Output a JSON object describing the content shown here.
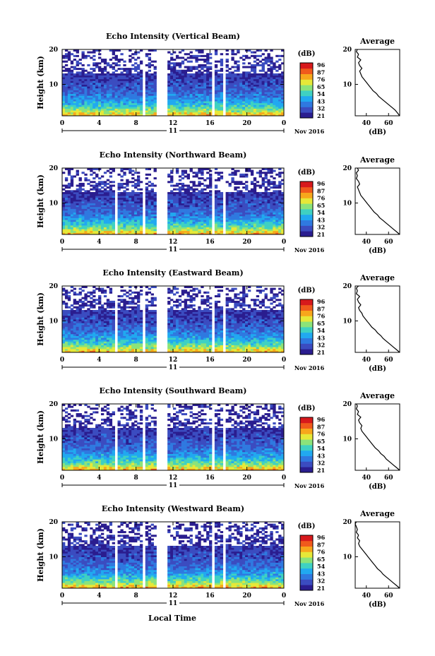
{
  "figure": {
    "xlabel": "Local Time"
  },
  "chart_data": [
    {
      "type": "heatmap",
      "title": "Echo Intensity (Vertical Beam)",
      "ylabel": "Height (km)",
      "x_ticks": [
        "0",
        "4",
        "8",
        "12",
        "16",
        "20",
        "0"
      ],
      "y_ticks": [
        "20",
        "10"
      ],
      "date_label": "11",
      "date_right": "Nov 2016",
      "ylim": [
        1,
        20
      ],
      "xlim": [
        0,
        24
      ],
      "gaps_hours": [
        [
          8.8,
          9.1
        ],
        [
          10.3,
          11.5
        ],
        [
          16.2,
          16.6
        ],
        [
          17.3,
          17.8
        ]
      ],
      "colorbar": {
        "unit": "(dB)",
        "ticks": [
          "96",
          "87",
          "76",
          "65",
          "54",
          "43",
          "32",
          "21"
        ],
        "colors": [
          "#2a1d8f",
          "#3b4cc0",
          "#2f79e0",
          "#21a9f0",
          "#3fd1c2",
          "#8be37a",
          "#e6e838",
          "#f7a71c",
          "#f05a1c",
          "#d7191c"
        ]
      },
      "average": {
        "title": "Average",
        "xlabel": "(dB)",
        "x_ticks": [
          "40",
          "60"
        ],
        "y_ticks": [
          "20",
          "10"
        ],
        "xlim": [
          30,
          70
        ],
        "ylim": [
          1,
          20
        ],
        "profile_x": [
          70,
          68,
          66,
          63,
          60,
          57,
          54,
          51,
          49,
          46,
          44,
          42,
          40,
          38,
          36,
          35,
          34,
          36,
          34,
          33,
          35,
          32,
          33,
          31,
          32
        ],
        "profile_y": [
          1,
          1.8,
          2.6,
          3.4,
          4.2,
          5,
          5.8,
          6.6,
          7.4,
          8.2,
          9,
          9.8,
          10.6,
          11.4,
          12.2,
          13,
          13.8,
          14.6,
          15.4,
          16.2,
          17,
          17.8,
          18.6,
          19.4,
          20
        ]
      }
    },
    {
      "type": "heatmap",
      "title": "Echo Intensity (Northward Beam)",
      "ylabel": "Height (km)",
      "x_ticks": [
        "0",
        "4",
        "8",
        "12",
        "16",
        "20",
        "0"
      ],
      "y_ticks": [
        "20",
        "10"
      ],
      "date_label": "11",
      "date_right": "Nov 2016",
      "ylim": [
        1,
        20
      ],
      "xlim": [
        0,
        24
      ],
      "gaps_hours": [
        [
          5.7,
          5.9
        ],
        [
          8.8,
          9.1
        ],
        [
          10.3,
          11.5
        ],
        [
          16.2,
          16.6
        ],
        [
          17.3,
          17.8
        ]
      ],
      "colorbar": {
        "unit": "(dB)",
        "ticks": [
          "96",
          "87",
          "76",
          "65",
          "54",
          "43",
          "32",
          "21"
        ],
        "colors": [
          "#2a1d8f",
          "#3b4cc0",
          "#2f79e0",
          "#21a9f0",
          "#3fd1c2",
          "#8be37a",
          "#e6e838",
          "#f7a71c",
          "#f05a1c",
          "#d7191c"
        ]
      },
      "average": {
        "title": "Average",
        "xlabel": "(dB)",
        "x_ticks": [
          "40",
          "60"
        ],
        "y_ticks": [
          "20",
          "10"
        ],
        "xlim": [
          30,
          70
        ],
        "ylim": [
          1,
          20
        ],
        "profile_x": [
          70,
          67,
          64,
          61,
          58,
          55,
          52,
          50,
          47,
          45,
          43,
          41,
          39,
          37,
          35,
          34,
          33,
          32,
          34,
          33,
          31,
          32,
          31,
          33,
          32
        ],
        "profile_y": [
          1,
          1.8,
          2.6,
          3.4,
          4.2,
          5,
          5.8,
          6.6,
          7.4,
          8.2,
          9,
          9.8,
          10.6,
          11.4,
          12.2,
          13,
          13.8,
          14.6,
          15.4,
          16.2,
          17,
          17.8,
          18.6,
          19.4,
          20
        ]
      }
    },
    {
      "type": "heatmap",
      "title": "Echo Intensity (Eastward Beam)",
      "ylabel": "Height (km)",
      "x_ticks": [
        "0",
        "4",
        "8",
        "12",
        "16",
        "20",
        "0"
      ],
      "y_ticks": [
        "20",
        "10"
      ],
      "date_label": "11",
      "date_right": "Nov 2016",
      "ylim": [
        1,
        20
      ],
      "xlim": [
        0,
        24
      ],
      "gaps_hours": [
        [
          5.7,
          5.9
        ],
        [
          8.8,
          9.1
        ],
        [
          10.3,
          11.5
        ],
        [
          16.2,
          16.6
        ],
        [
          17.3,
          17.8
        ]
      ],
      "colorbar": {
        "unit": "(dB)",
        "ticks": [
          "96",
          "87",
          "76",
          "65",
          "54",
          "43",
          "32",
          "21"
        ],
        "colors": [
          "#2a1d8f",
          "#3b4cc0",
          "#2f79e0",
          "#21a9f0",
          "#3fd1c2",
          "#8be37a",
          "#e6e838",
          "#f7a71c",
          "#f05a1c",
          "#d7191c"
        ]
      },
      "average": {
        "title": "Average",
        "xlabel": "(dB)",
        "x_ticks": [
          "40",
          "60"
        ],
        "y_ticks": [
          "20",
          "10"
        ],
        "xlim": [
          30,
          70
        ],
        "ylim": [
          1,
          20
        ],
        "profile_x": [
          70,
          67,
          64,
          61,
          58,
          55,
          53,
          50,
          48,
          45,
          43,
          41,
          39,
          37,
          36,
          34,
          33,
          35,
          33,
          32,
          34,
          31,
          32,
          31,
          33
        ],
        "profile_y": [
          1,
          1.8,
          2.6,
          3.4,
          4.2,
          5,
          5.8,
          6.6,
          7.4,
          8.2,
          9,
          9.8,
          10.6,
          11.4,
          12.2,
          13,
          13.8,
          14.6,
          15.4,
          16.2,
          17,
          17.8,
          18.6,
          19.4,
          20
        ]
      }
    },
    {
      "type": "heatmap",
      "title": "Echo Intensity (Southward Beam)",
      "ylabel": "Height (km)",
      "x_ticks": [
        "0",
        "4",
        "8",
        "12",
        "16",
        "20",
        "0"
      ],
      "y_ticks": [
        "20",
        "10"
      ],
      "date_label": "11",
      "date_right": "Nov 2016",
      "ylim": [
        1,
        20
      ],
      "xlim": [
        0,
        24
      ],
      "gaps_hours": [
        [
          5.7,
          5.9
        ],
        [
          8.8,
          9.1
        ],
        [
          10.3,
          11.5
        ],
        [
          16.2,
          16.6
        ],
        [
          17.3,
          17.8
        ]
      ],
      "colorbar": {
        "unit": "(dB)",
        "ticks": [
          "96",
          "87",
          "76",
          "65",
          "54",
          "43",
          "32",
          "21"
        ],
        "colors": [
          "#2a1d8f",
          "#3b4cc0",
          "#2f79e0",
          "#21a9f0",
          "#3fd1c2",
          "#8be37a",
          "#e6e838",
          "#f7a71c",
          "#f05a1c",
          "#d7191c"
        ]
      },
      "average": {
        "title": "Average",
        "xlabel": "(dB)",
        "x_ticks": [
          "40",
          "60"
        ],
        "y_ticks": [
          "20",
          "10"
        ],
        "xlim": [
          30,
          70
        ],
        "ylim": [
          1,
          20
        ],
        "profile_x": [
          70,
          67,
          64,
          61,
          58,
          56,
          53,
          51,
          48,
          46,
          44,
          42,
          40,
          38,
          36,
          35,
          36,
          34,
          33,
          35,
          32,
          33,
          31,
          32,
          31
        ],
        "profile_y": [
          1,
          1.8,
          2.6,
          3.4,
          4.2,
          5,
          5.8,
          6.6,
          7.4,
          8.2,
          9,
          9.8,
          10.6,
          11.4,
          12.2,
          13,
          13.8,
          14.6,
          15.4,
          16.2,
          17,
          17.8,
          18.6,
          19.4,
          20
        ]
      }
    },
    {
      "type": "heatmap",
      "title": "Echo Intensity (Westward Beam)",
      "ylabel": "Height (km)",
      "x_ticks": [
        "0",
        "4",
        "8",
        "12",
        "16",
        "20",
        "0"
      ],
      "y_ticks": [
        "20",
        "10"
      ],
      "date_label": "11",
      "date_right": "Nov 2016",
      "ylim": [
        1,
        20
      ],
      "xlim": [
        0,
        24
      ],
      "gaps_hours": [
        [
          5.7,
          5.9
        ],
        [
          8.8,
          9.1
        ],
        [
          10.3,
          11.5
        ],
        [
          16.2,
          16.6
        ],
        [
          17.3,
          17.8
        ]
      ],
      "colorbar": {
        "unit": "(dB)",
        "ticks": [
          "96",
          "87",
          "76",
          "65",
          "54",
          "43",
          "32",
          "21"
        ],
        "colors": [
          "#2a1d8f",
          "#3b4cc0",
          "#2f79e0",
          "#21a9f0",
          "#3fd1c2",
          "#8be37a",
          "#e6e838",
          "#f7a71c",
          "#f05a1c",
          "#d7191c"
        ]
      },
      "average": {
        "title": "Average",
        "xlabel": "(dB)",
        "x_ticks": [
          "40",
          "60"
        ],
        "y_ticks": [
          "20",
          "10"
        ],
        "xlim": [
          30,
          70
        ],
        "ylim": [
          1,
          20
        ],
        "profile_x": [
          70,
          67,
          64,
          61,
          58,
          55,
          53,
          50,
          48,
          46,
          44,
          42,
          40,
          38,
          36,
          34,
          33,
          34,
          32,
          33,
          31,
          32,
          31,
          30,
          31
        ],
        "profile_y": [
          1,
          1.8,
          2.6,
          3.4,
          4.2,
          5,
          5.8,
          6.6,
          7.4,
          8.2,
          9,
          9.8,
          10.6,
          11.4,
          12.2,
          13,
          13.8,
          14.6,
          15.4,
          16.2,
          17,
          17.8,
          18.6,
          19.4,
          20
        ]
      }
    }
  ]
}
